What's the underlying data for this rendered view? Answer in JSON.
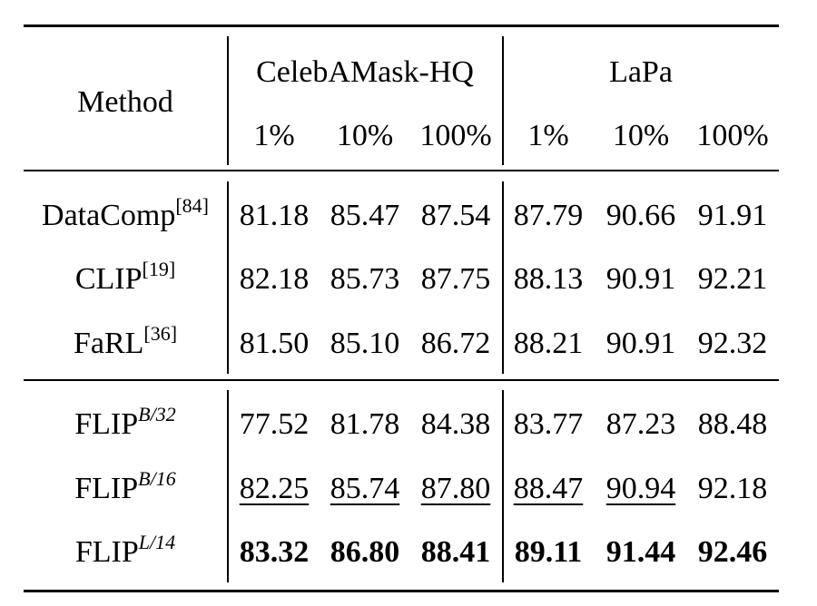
{
  "table": {
    "header": {
      "method": "Method",
      "groups": [
        "CelebAMask-HQ",
        "LaPa"
      ],
      "subcols": [
        "1%",
        "10%",
        "100%",
        "1%",
        "10%",
        "100%"
      ]
    },
    "rows": [
      {
        "method": "DataComp",
        "sup": "[84]",
        "values": [
          "81.18",
          "85.47",
          "87.54",
          "87.79",
          "90.66",
          "91.91"
        ],
        "style": [
          "",
          "",
          "",
          "",
          "",
          ""
        ]
      },
      {
        "method": "CLIP",
        "sup": "[19]",
        "values": [
          "82.18",
          "85.73",
          "87.75",
          "88.13",
          "90.91",
          "92.21"
        ],
        "style": [
          "",
          "",
          "",
          "",
          "",
          ""
        ]
      },
      {
        "method": "FaRL",
        "sup": "[36]",
        "values": [
          "81.50",
          "85.10",
          "86.72",
          "88.21",
          "90.91",
          "92.32"
        ],
        "style": [
          "",
          "",
          "",
          "",
          "",
          ""
        ]
      },
      {
        "method": "FLIP",
        "sup": "B/32",
        "values": [
          "77.52",
          "81.78",
          "84.38",
          "83.77",
          "87.23",
          "88.48"
        ],
        "style": [
          "",
          "",
          "",
          "",
          "",
          ""
        ]
      },
      {
        "method": "FLIP",
        "sup": "B/16",
        "values": [
          "82.25",
          "85.74",
          "87.80",
          "88.47",
          "90.94",
          "92.18"
        ],
        "style": [
          "underline",
          "underline",
          "underline",
          "underline",
          "underline",
          ""
        ]
      },
      {
        "method": "FLIP",
        "sup": "L/14",
        "values": [
          "83.32",
          "86.80",
          "88.41",
          "89.11",
          "91.44",
          "92.46"
        ],
        "style": [
          "bold",
          "bold",
          "bold",
          "bold",
          "bold",
          "bold"
        ]
      }
    ]
  }
}
